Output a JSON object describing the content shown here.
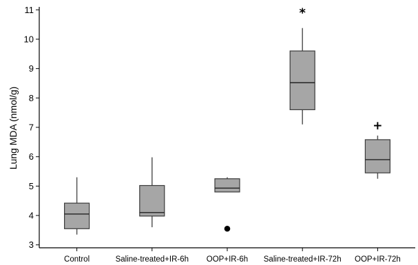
{
  "chart_data": {
    "type": "box",
    "title": "",
    "xlabel": "",
    "ylabel": "Lung MDA (nmol/g)",
    "ylim": [
      2.9,
      11.1
    ],
    "yticks": [
      3,
      4,
      5,
      6,
      7,
      8,
      9,
      10,
      11
    ],
    "grid": false,
    "legend": "none",
    "box_color": "#a6a6a6",
    "categories": [
      "Control",
      "Saline-treated+IR-6h",
      "OOP+IR-6h",
      "Saline-treated+IR-72h",
      "OOP+IR-72h"
    ],
    "boxes": [
      {
        "whisker_low": 3.35,
        "q1": 3.55,
        "median": 4.05,
        "q3": 4.42,
        "whisker_high": 5.3,
        "outliers": [],
        "annotation": ""
      },
      {
        "whisker_low": 3.6,
        "q1": 3.98,
        "median": 4.1,
        "q3": 5.02,
        "whisker_high": 5.98,
        "outliers": [],
        "annotation": ""
      },
      {
        "whisker_low": 4.8,
        "q1": 4.8,
        "median": 4.93,
        "q3": 5.25,
        "whisker_high": 5.3,
        "outliers": [
          3.55
        ],
        "annotation": ""
      },
      {
        "whisker_low": 7.1,
        "q1": 7.6,
        "median": 8.52,
        "q3": 9.6,
        "whisker_high": 10.38,
        "outliers": [],
        "annotation": "*"
      },
      {
        "whisker_low": 5.25,
        "q1": 5.45,
        "median": 5.9,
        "q3": 6.58,
        "whisker_high": 6.72,
        "outliers": [],
        "annotation": "+"
      }
    ]
  }
}
